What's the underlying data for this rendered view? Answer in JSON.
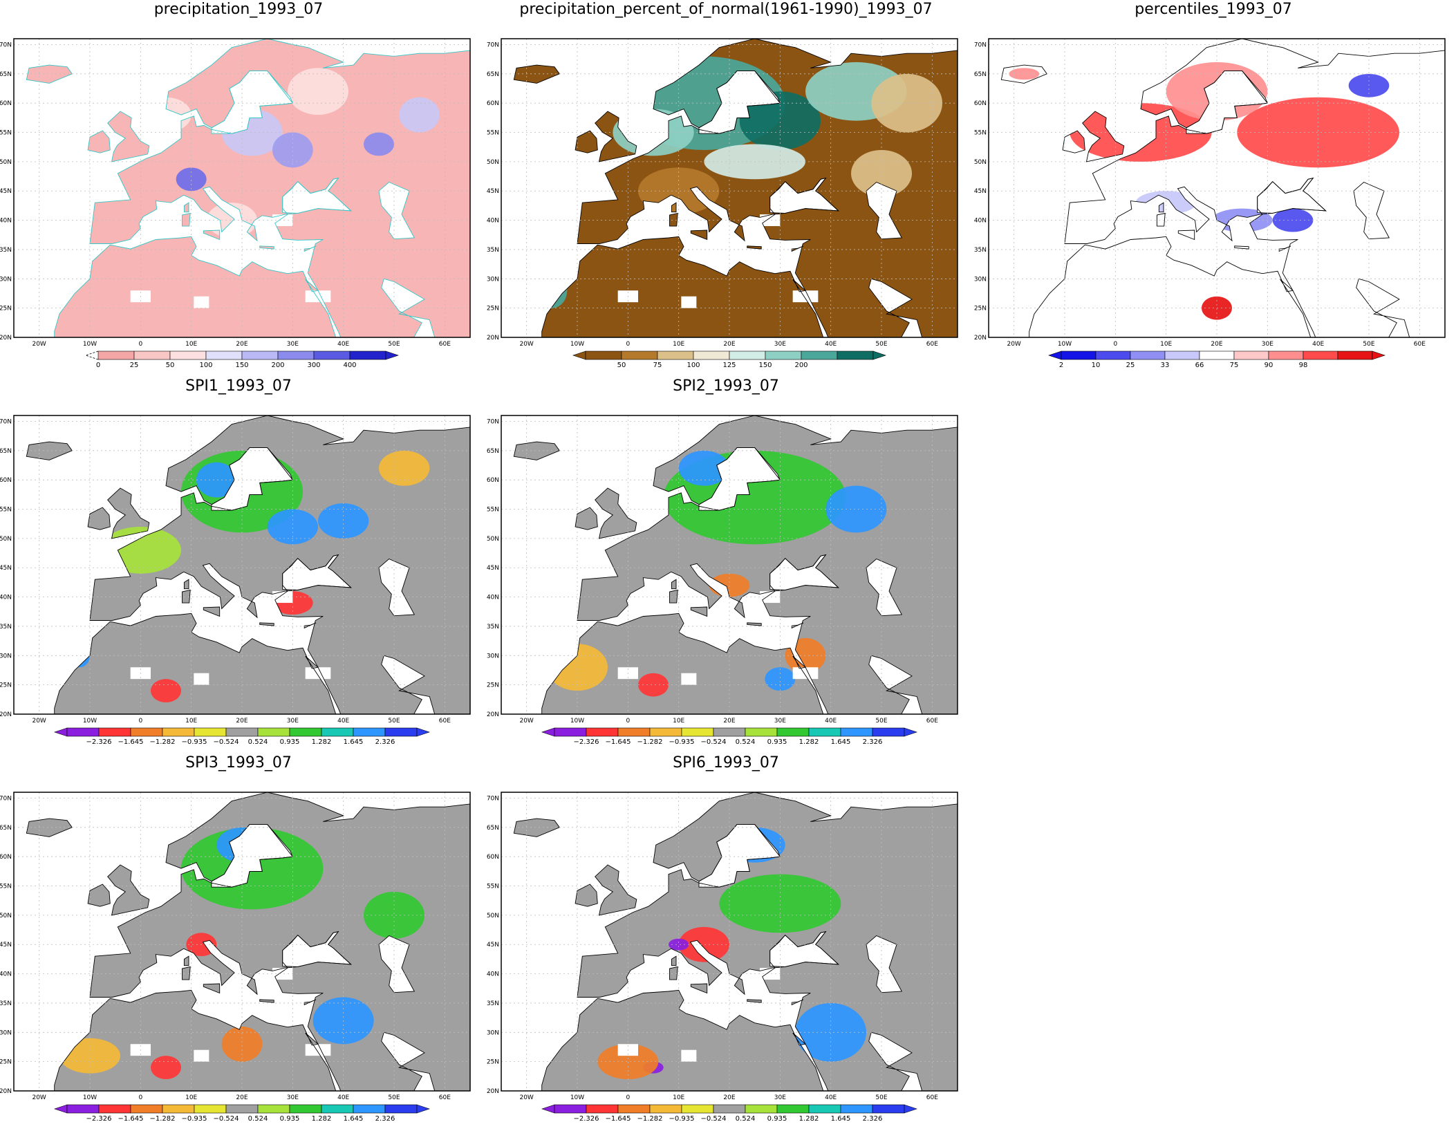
{
  "lat_labels": [
    "20N",
    "25N",
    "30N",
    "35N",
    "40N",
    "45N",
    "50N",
    "55N",
    "60N",
    "65N",
    "70N"
  ],
  "lon_labels": [
    "20W",
    "10W",
    "0",
    "10E",
    "20E",
    "30E",
    "40E",
    "50E",
    "60E"
  ],
  "palettes": {
    "precip": [
      "#f4a6a6",
      "#f9c6c6",
      "#fde0e0",
      "#e0e0fb",
      "#b9b9f5",
      "#8b8bee",
      "#5a5ae2",
      "#2323cc"
    ],
    "pct": [
      "#8c5413",
      "#b5792c",
      "#dcc08a",
      "#f0e9d6",
      "#d2ece6",
      "#8ed0c4",
      "#4aa79a",
      "#0f6e63"
    ],
    "perc": [
      "#1414e6",
      "#4b4bee",
      "#8f8ff4",
      "#c8c8fa",
      "#ffffff",
      "#ffc8c8",
      "#ff8f8f",
      "#ff4b4b",
      "#e61414"
    ],
    "spi": [
      "#8a1fe0",
      "#ff3535",
      "#f07d28",
      "#f4b937",
      "#e6e632",
      "#a0a0a0",
      "#a6e23a",
      "#32c832",
      "#18c8b4",
      "#2e96ff",
      "#2a3ef0"
    ]
  },
  "panels": [
    {
      "title": "precipitation_1993_07",
      "palette": "precip",
      "bg": "#f7b5b5",
      "tip_left": "none",
      "tip_right": "#2323cc",
      "ticks": [
        "0",
        "25",
        "50",
        "100",
        "150",
        "200",
        "300",
        "400"
      ],
      "boundary": "#33c6c6",
      "blobs": [
        [
          22,
          55,
          "#c8c8f6",
          6,
          4
        ],
        [
          30,
          52,
          "#9d9df0",
          4,
          3
        ],
        [
          10,
          47,
          "#6e6eea",
          3,
          2
        ],
        [
          47,
          53,
          "#8b8bee",
          3,
          2
        ],
        [
          55,
          58,
          "#c8c8f6",
          4,
          3
        ],
        [
          5,
          58,
          "#fde0e0",
          5,
          3
        ],
        [
          35,
          62,
          "#fde0e0",
          6,
          4
        ],
        [
          18,
          40,
          "#fde0e0",
          5,
          3
        ]
      ],
      "holes": [
        [
          0,
          27,
          4,
          2
        ],
        [
          12,
          26,
          3,
          2
        ],
        [
          35,
          27,
          5,
          2
        ],
        [
          28,
          40,
          4,
          2
        ]
      ]
    },
    {
      "title": "precipitation_percent_of_normal(1961-1990)_1993_07",
      "palette": "pct",
      "bg": "#8c5413",
      "tip_left": "#8c5413",
      "tip_right": "#0f6e63",
      "ticks": [
        "50",
        "75",
        "100",
        "125",
        "150",
        "200"
      ],
      "boundary": "#000000",
      "blobs": [
        [
          15,
          60,
          "#4aa79a",
          16,
          8
        ],
        [
          30,
          57,
          "#0f6e63",
          8,
          5
        ],
        [
          45,
          62,
          "#8ed0c4",
          10,
          5
        ],
        [
          5,
          55,
          "#8ed0c4",
          8,
          4
        ],
        [
          25,
          50,
          "#d2ece6",
          10,
          3
        ],
        [
          55,
          60,
          "#dcc08a",
          7,
          5
        ],
        [
          -15,
          28,
          "#4aa79a",
          3,
          3
        ],
        [
          10,
          45,
          "#b5792c",
          8,
          4
        ],
        [
          50,
          48,
          "#dcc08a",
          6,
          4
        ]
      ],
      "holes": [
        [
          0,
          27,
          4,
          2
        ],
        [
          12,
          26,
          3,
          2
        ],
        [
          35,
          27,
          5,
          2
        ],
        [
          28,
          40,
          4,
          2
        ]
      ]
    },
    {
      "title": "percentiles_1993_07",
      "palette": "perc",
      "bg": "#ffffff",
      "tip_left": "#1414e6",
      "tip_right": "#e61414",
      "ticks": [
        "2",
        "10",
        "25",
        "33",
        "66",
        "75",
        "90",
        "98"
      ],
      "boundary": "#000000",
      "blobs": [
        [
          5,
          55,
          "#ff4b4b",
          14,
          5
        ],
        [
          40,
          55,
          "#ff4b4b",
          16,
          6
        ],
        [
          20,
          62,
          "#ff8f8f",
          10,
          5
        ],
        [
          50,
          63,
          "#4b4bee",
          4,
          2
        ],
        [
          25,
          40,
          "#8f8ff4",
          6,
          2
        ],
        [
          35,
          40,
          "#4b4bee",
          4,
          2
        ],
        [
          20,
          25,
          "#e61414",
          3,
          2
        ],
        [
          -18,
          65,
          "#ff8f8f",
          3,
          1
        ],
        [
          10,
          43,
          "#c8c8fa",
          6,
          2
        ]
      ],
      "holes": []
    },
    {
      "title": "SPI1_1993_07",
      "palette": "spi",
      "bg": "#a0a0a0",
      "tip_left": "#8a1fe0",
      "tip_right": "#2a3ef0",
      "ticks": [
        "-2.326",
        "-1.645",
        "-1.282",
        "-0.935",
        "-0.524",
        "0.524",
        "0.935",
        "1.282",
        "1.645",
        "2.326"
      ],
      "boundary": "#000000",
      "blobs": [
        [
          20,
          58,
          "#32c832",
          12,
          7
        ],
        [
          30,
          52,
          "#2e96ff",
          5,
          3
        ],
        [
          40,
          53,
          "#2e96ff",
          5,
          3
        ],
        [
          52,
          62,
          "#f4b937",
          5,
          3
        ],
        [
          30,
          39,
          "#ff3535",
          4,
          2
        ],
        [
          5,
          24,
          "#ff3535",
          3,
          2
        ],
        [
          15,
          60,
          "#2e96ff",
          4,
          3
        ],
        [
          0,
          48,
          "#a6e23a",
          8,
          4
        ],
        [
          -12,
          30,
          "#2e96ff",
          2,
          2
        ]
      ],
      "holes": [
        [
          0,
          27,
          4,
          2
        ],
        [
          12,
          26,
          3,
          2
        ],
        [
          35,
          27,
          5,
          2
        ],
        [
          28,
          40,
          4,
          2
        ]
      ]
    },
    {
      "title": "SPI2_1993_07",
      "palette": "spi",
      "bg": "#a0a0a0",
      "tip_left": "#8a1fe0",
      "tip_right": "#2a3ef0",
      "ticks": [
        "-2.326",
        "-1.645",
        "-1.282",
        "-0.935",
        "-0.524",
        "0.524",
        "0.935",
        "1.282",
        "1.645",
        "2.326"
      ],
      "boundary": "#000000",
      "blobs": [
        [
          25,
          57,
          "#32c832",
          18,
          8
        ],
        [
          45,
          55,
          "#2e96ff",
          6,
          4
        ],
        [
          15,
          62,
          "#2e96ff",
          5,
          3
        ],
        [
          5,
          25,
          "#ff3535",
          3,
          2
        ],
        [
          35,
          30,
          "#f07d28",
          4,
          3
        ],
        [
          -10,
          28,
          "#f4b937",
          6,
          4
        ],
        [
          20,
          42,
          "#f07d28",
          4,
          2
        ],
        [
          30,
          26,
          "#2e96ff",
          3,
          2
        ]
      ],
      "holes": [
        [
          0,
          27,
          4,
          2
        ],
        [
          12,
          26,
          3,
          2
        ],
        [
          35,
          27,
          5,
          2
        ],
        [
          28,
          40,
          4,
          2
        ]
      ]
    },
    {
      "title": "SPI3_1993_07",
      "palette": "spi",
      "bg": "#a0a0a0",
      "tip_left": "#8a1fe0",
      "tip_right": "#2a3ef0",
      "ticks": [
        "-2.326",
        "-1.645",
        "-1.282",
        "-0.935",
        "-0.524",
        "0.524",
        "0.935",
        "1.282",
        "1.645",
        "2.326"
      ],
      "boundary": "#000000",
      "blobs": [
        [
          22,
          58,
          "#32c832",
          14,
          7
        ],
        [
          12,
          45,
          "#ff3535",
          3,
          2
        ],
        [
          20,
          62,
          "#2e96ff",
          5,
          3
        ],
        [
          40,
          32,
          "#2e96ff",
          6,
          4
        ],
        [
          -10,
          26,
          "#f4b937",
          6,
          3
        ],
        [
          5,
          24,
          "#ff3535",
          3,
          2
        ],
        [
          50,
          50,
          "#32c832",
          6,
          4
        ],
        [
          20,
          28,
          "#f07d28",
          4,
          3
        ]
      ],
      "holes": [
        [
          0,
          27,
          4,
          2
        ],
        [
          12,
          26,
          3,
          2
        ],
        [
          35,
          27,
          5,
          2
        ],
        [
          28,
          40,
          4,
          2
        ]
      ]
    },
    {
      "title": "SPI6_1993_07",
      "palette": "spi",
      "bg": "#a0a0a0",
      "tip_left": "#8a1fe0",
      "tip_right": "#2a3ef0",
      "ticks": [
        "-2.326",
        "-1.645",
        "-1.282",
        "-0.935",
        "-0.524",
        "0.524",
        "0.935",
        "1.282",
        "1.645",
        "2.326"
      ],
      "boundary": "#000000",
      "blobs": [
        [
          15,
          45,
          "#ff3535",
          5,
          3
        ],
        [
          10,
          45,
          "#8a1fe0",
          2,
          1
        ],
        [
          40,
          30,
          "#2e96ff",
          7,
          5
        ],
        [
          30,
          52,
          "#32c832",
          12,
          5
        ],
        [
          5,
          24,
          "#8a1fe0",
          2,
          1
        ],
        [
          0,
          25,
          "#f07d28",
          6,
          3
        ],
        [
          25,
          62,
          "#2e96ff",
          6,
          3
        ]
      ],
      "holes": [
        [
          0,
          27,
          4,
          2
        ],
        [
          12,
          26,
          3,
          2
        ],
        [
          28,
          40,
          4,
          2
        ]
      ]
    }
  ]
}
